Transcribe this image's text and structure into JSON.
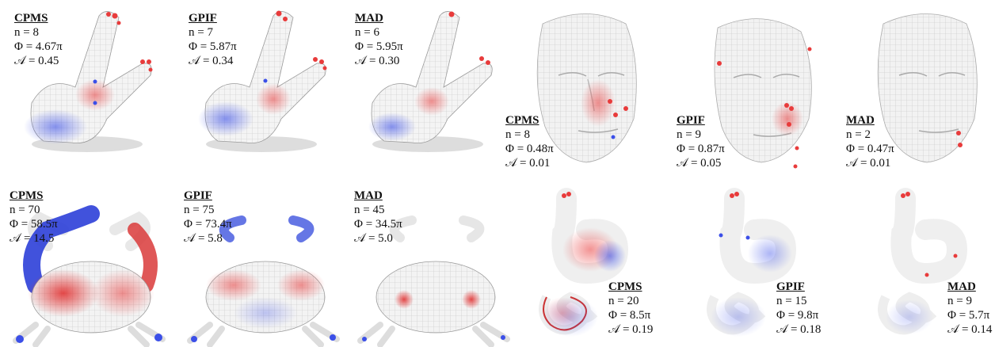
{
  "colors": {
    "positive": "#e83b3b",
    "negative": "#3b4fe8",
    "surface": "#f2f2f2",
    "grid": "#bdbdbd"
  },
  "panels": [
    {
      "model": "bunny-ears",
      "method": "CPMS",
      "n": "n = 8",
      "phi": "Φ = 4.67π",
      "area": "𝒜 = 0.45"
    },
    {
      "model": "bunny-ears",
      "method": "GPIF",
      "n": "n = 7",
      "phi": "Φ = 5.87π",
      "area": "𝒜 = 0.34"
    },
    {
      "model": "bunny-ears",
      "method": "MAD",
      "n": "n = 6",
      "phi": "Φ = 5.95π",
      "area": "𝒜 = 0.30"
    },
    {
      "model": "face",
      "method": "CPMS",
      "n": "n = 8",
      "phi": "Φ = 0.48π",
      "area": "𝒜 = 0.01"
    },
    {
      "model": "face",
      "method": "GPIF",
      "n": "n = 9",
      "phi": "Φ = 0.87π",
      "area": "𝒜 = 0.05"
    },
    {
      "model": "face",
      "method": "MAD",
      "n": "n = 2",
      "phi": "Φ = 0.47π",
      "area": "𝒜 = 0.01"
    },
    {
      "model": "crab",
      "method": "CPMS",
      "n": "n = 70",
      "phi": "Φ = 58.5π",
      "area": "𝒜 = 14.5"
    },
    {
      "model": "crab",
      "method": "GPIF",
      "n": "n = 75",
      "phi": "Φ = 73.4π",
      "area": "𝒜 = 5.8"
    },
    {
      "model": "crab",
      "method": "MAD",
      "n": "n = 45",
      "phi": "Φ = 34.5π",
      "area": "𝒜 = 5.0"
    },
    {
      "model": "intestine",
      "method": "CPMS",
      "n": "n = 20",
      "phi": "Φ = 8.5π",
      "area": "𝒜 = 0.19"
    },
    {
      "model": "intestine",
      "method": "GPIF",
      "n": "n = 15",
      "phi": "Φ = 9.8π",
      "area": "𝒜 = 0.18"
    },
    {
      "model": "intestine",
      "method": "MAD",
      "n": "n = 9",
      "phi": "Φ = 5.7π",
      "area": "𝒜 = 0.14"
    }
  ]
}
